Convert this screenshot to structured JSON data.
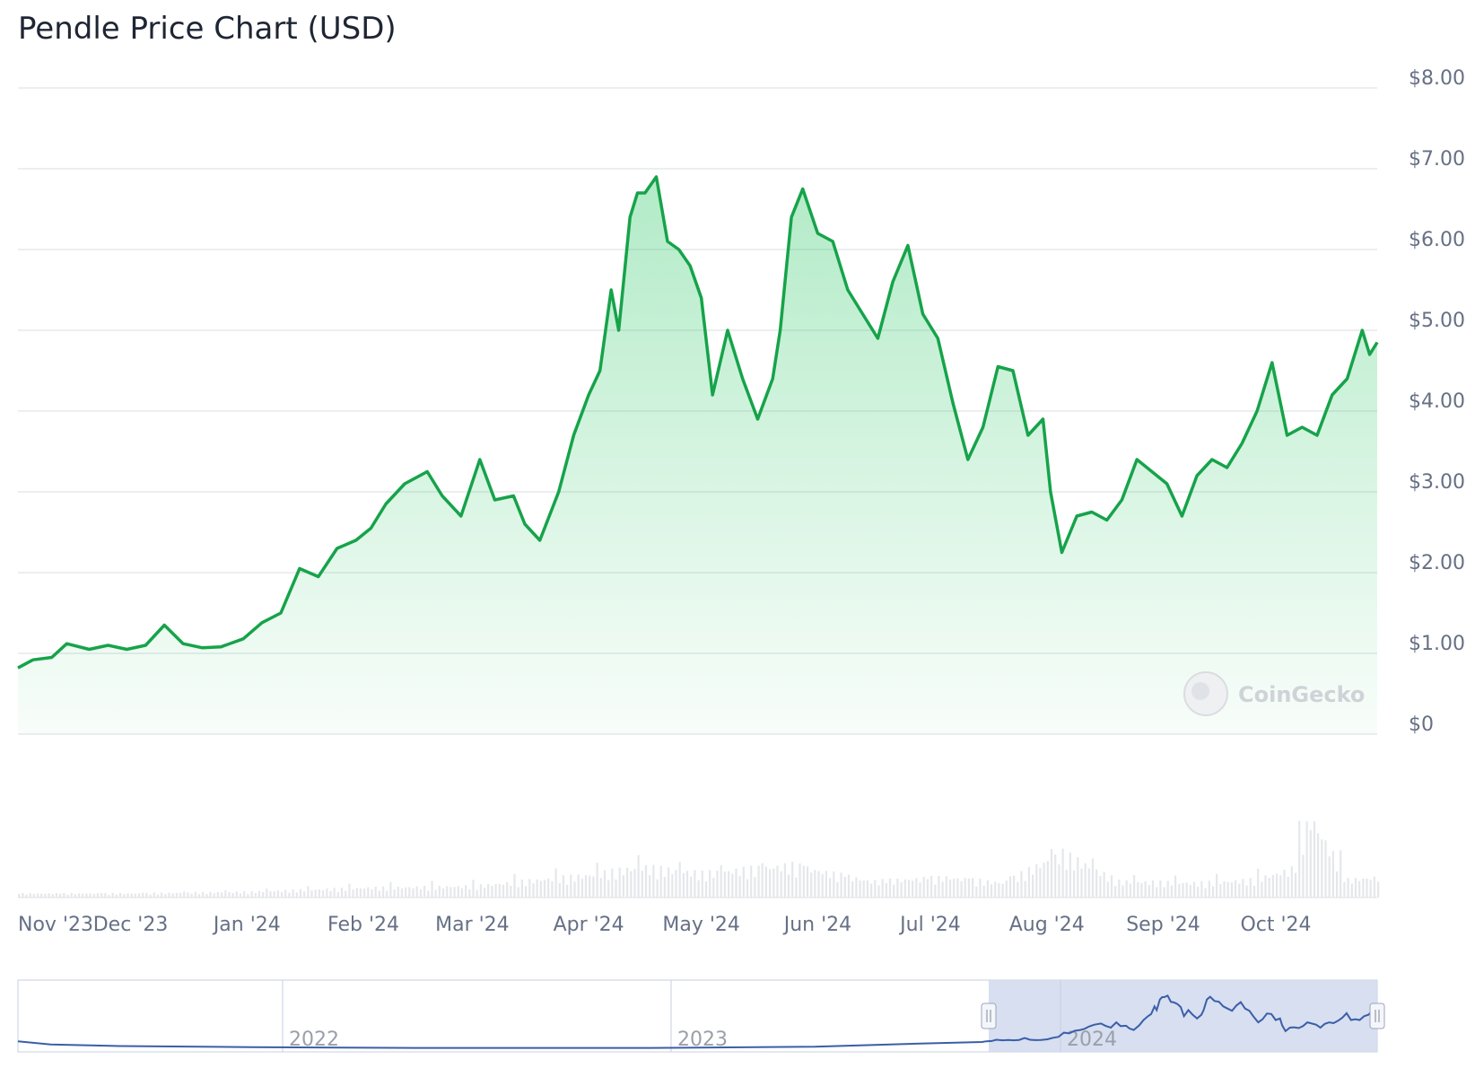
{
  "chart_data": {
    "type": "area",
    "title": "Pendle Price Chart (USD)",
    "y_tick_labels": [
      "$0",
      "$1.00",
      "$2.00",
      "$3.00",
      "$4.00",
      "$5.00",
      "$6.00",
      "$7.00",
      "$8.00"
    ],
    "ylim": [
      0,
      8
    ],
    "x_tick_labels": [
      "Nov '23",
      "Dec '23",
      "Jan '24",
      "Feb '24",
      "Mar '24",
      "Apr '24",
      "May '24",
      "Jun '24",
      "Jul '24",
      "Aug '24",
      "Sep '24",
      "Oct '24"
    ],
    "xlim": [
      "2023-11-01",
      "2024-10-28"
    ],
    "grid": true,
    "line_color": "#16a34a",
    "fill_color": "#22c55e",
    "series": [
      {
        "x": [
          "2023-11-01",
          "2023-11-05",
          "2023-11-10",
          "2023-11-14",
          "2023-11-20",
          "2023-11-25",
          "2023-11-30",
          "2023-12-05",
          "2023-12-10",
          "2023-12-15",
          "2023-12-20",
          "2023-12-25",
          "2023-12-31",
          "2024-01-05",
          "2024-01-10",
          "2024-01-15",
          "2024-01-20",
          "2024-01-25",
          "2024-01-30",
          "2024-02-03",
          "2024-02-07",
          "2024-02-12",
          "2024-02-18",
          "2024-02-22",
          "2024-02-27",
          "2024-03-03",
          "2024-03-07",
          "2024-03-12",
          "2024-03-15",
          "2024-03-19",
          "2024-03-24",
          "2024-03-28",
          "2024-04-01",
          "2024-04-04",
          "2024-04-07",
          "2024-04-09",
          "2024-04-12",
          "2024-04-14",
          "2024-04-16",
          "2024-04-19",
          "2024-04-22",
          "2024-04-25",
          "2024-04-28",
          "2024-05-01",
          "2024-05-04",
          "2024-05-08",
          "2024-05-12",
          "2024-05-16",
          "2024-05-20",
          "2024-05-22",
          "2024-05-25",
          "2024-05-28",
          "2024-06-01",
          "2024-06-05",
          "2024-06-09",
          "2024-06-13",
          "2024-06-17",
          "2024-06-21",
          "2024-06-25",
          "2024-06-29",
          "2024-07-03",
          "2024-07-07",
          "2024-07-11",
          "2024-07-15",
          "2024-07-19",
          "2024-07-23",
          "2024-07-27",
          "2024-07-31",
          "2024-08-02",
          "2024-08-05",
          "2024-08-09",
          "2024-08-13",
          "2024-08-17",
          "2024-08-21",
          "2024-08-25",
          "2024-08-29",
          "2024-09-02",
          "2024-09-06",
          "2024-09-10",
          "2024-09-14",
          "2024-09-18",
          "2024-09-22",
          "2024-09-26",
          "2024-09-30",
          "2024-10-04",
          "2024-10-08",
          "2024-10-12",
          "2024-10-16",
          "2024-10-20",
          "2024-10-24",
          "2024-10-26",
          "2024-10-28"
        ],
        "values": [
          0.82,
          0.92,
          0.95,
          1.12,
          1.05,
          1.1,
          1.05,
          1.1,
          1.35,
          1.12,
          1.07,
          1.08,
          1.18,
          1.38,
          1.5,
          2.05,
          1.95,
          2.3,
          2.4,
          2.55,
          2.85,
          3.1,
          3.25,
          2.95,
          2.7,
          3.4,
          2.9,
          2.95,
          2.6,
          2.4,
          3.0,
          3.7,
          4.2,
          4.5,
          5.5,
          5.0,
          6.4,
          6.7,
          6.7,
          6.9,
          6.1,
          6.0,
          5.8,
          5.4,
          4.2,
          5.0,
          4.4,
          3.9,
          4.4,
          5.0,
          6.4,
          6.75,
          6.2,
          6.1,
          5.5,
          5.2,
          4.9,
          5.6,
          6.05,
          5.2,
          4.9,
          4.1,
          3.4,
          3.8,
          4.55,
          4.5,
          3.7,
          3.9,
          3.0,
          2.25,
          2.7,
          2.75,
          2.65,
          2.9,
          3.4,
          3.25,
          3.1,
          2.7,
          3.2,
          3.4,
          3.3,
          3.6,
          4.0,
          4.6,
          3.7,
          3.8,
          3.7,
          4.2,
          4.4,
          5.0,
          4.7,
          4.85
        ]
      }
    ],
    "volume": {
      "note": "relative daily trading volume shown as thin bars under the price area",
      "x": [
        "2023-11-01",
        "2023-12-01",
        "2024-01-01",
        "2024-02-01",
        "2024-03-01",
        "2024-04-01",
        "2024-04-15",
        "2024-05-01",
        "2024-05-25",
        "2024-06-15",
        "2024-07-05",
        "2024-07-20",
        "2024-08-05",
        "2024-08-20",
        "2024-09-10",
        "2024-09-25",
        "2024-10-05",
        "2024-10-10",
        "2024-10-20",
        "2024-10-28"
      ],
      "values": [
        0.05,
        0.05,
        0.07,
        0.12,
        0.14,
        0.28,
        0.38,
        0.3,
        0.4,
        0.2,
        0.25,
        0.18,
        0.55,
        0.2,
        0.18,
        0.22,
        0.35,
        1.0,
        0.22,
        0.25
      ]
    },
    "navigator": {
      "x_tick_labels": [
        "2022",
        "2023",
        "2024"
      ],
      "selected_range": [
        "2023-11-01",
        "2024-10-28"
      ]
    },
    "watermark": "CoinGecko"
  }
}
